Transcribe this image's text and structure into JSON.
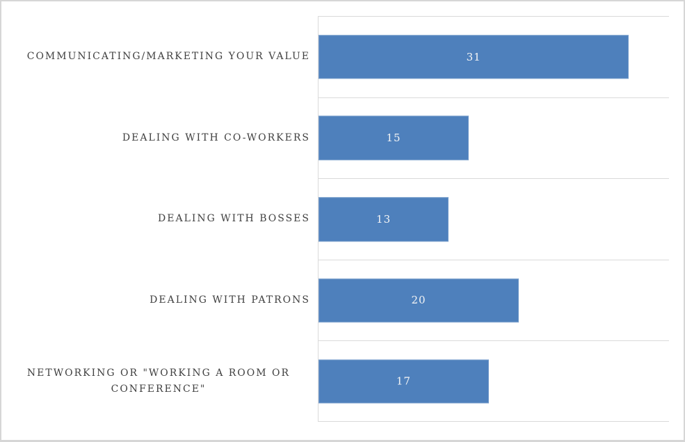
{
  "window": {
    "background": "#ffffff",
    "border_color": "#d6d6d6"
  },
  "chart_data": {
    "type": "bar",
    "orientation": "horizontal",
    "title": "",
    "categories": [
      "COMMUNICATING/MARKETING YOUR VALUE",
      "DEALING WITH CO-WORKERS",
      "DEALING WITH BOSSES",
      "DEALING WITH PATRONS",
      "NETWORKING OR \"WORKING A ROOM OR CONFERENCE\""
    ],
    "values": [
      31,
      15,
      13,
      20,
      17
    ],
    "data_labels": [
      "31",
      "15",
      "13",
      "20",
      "17"
    ],
    "data_label_position": "center",
    "xlabel": "",
    "ylabel": "",
    "xlim": [
      0,
      35
    ],
    "grid": true,
    "gridlines": "category-band-boundaries",
    "legend": "none",
    "colors": {
      "bar": "#4e80bc",
      "category_label": "#404040",
      "value_label": "#f5f5f5",
      "gridline": "#dadada"
    }
  }
}
